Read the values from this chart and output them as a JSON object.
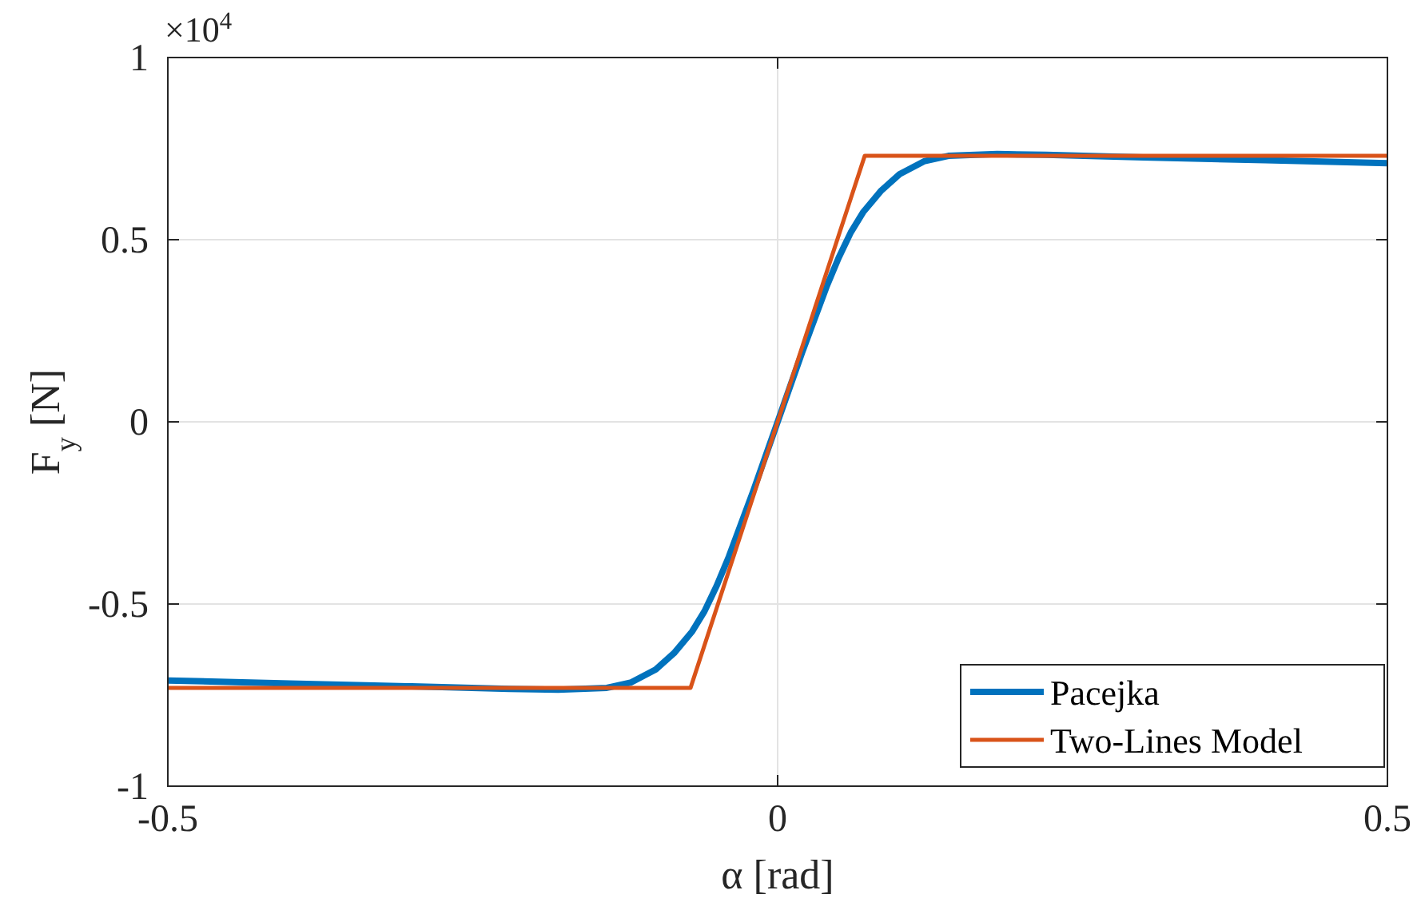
{
  "chart_data": {
    "type": "line",
    "xlabel": "α [rad]",
    "ylabel": "F$_{y}$ [N]",
    "annotations": [
      "×10$^{4}$"
    ],
    "xlim": [
      -0.5,
      0.5
    ],
    "xticks": [
      -0.5,
      0,
      0.5
    ],
    "ylim": [
      -1,
      1
    ],
    "yticks": [
      -1,
      -0.5,
      0,
      0.5,
      1
    ],
    "grid": true,
    "legend": "bottom right",
    "line_style": "solid",
    "marker": "none",
    "series": [
      {
        "name": "Pacejka",
        "color": "#0072bd",
        "x": [
          -0.5,
          -0.4,
          -0.3,
          -0.22,
          -0.18,
          -0.14,
          -0.12,
          -0.1,
          -0.085,
          -0.07,
          -0.06,
          -0.05,
          -0.04,
          -0.03,
          -0.02,
          -0.01,
          0,
          0.01,
          0.02,
          0.03,
          0.04,
          0.05,
          0.06,
          0.07,
          0.085,
          0.1,
          0.12,
          0.14,
          0.18,
          0.22,
          0.3,
          0.4,
          0.5
        ],
        "values": [
          -0.71,
          -0.718,
          -0.726,
          -0.733,
          -0.735,
          -0.73,
          -0.715,
          -0.68,
          -0.635,
          -0.575,
          -0.52,
          -0.45,
          -0.37,
          -0.28,
          -0.19,
          -0.095,
          0,
          0.095,
          0.19,
          0.28,
          0.37,
          0.45,
          0.52,
          0.575,
          0.635,
          0.68,
          0.715,
          0.73,
          0.735,
          0.733,
          0.726,
          0.718,
          0.71
        ]
      },
      {
        "name": "Two-Lines Model",
        "color": "#d95319",
        "x": [
          -0.5,
          -0.0714,
          0.0714,
          0.5
        ],
        "values": [
          -0.73,
          -0.73,
          0.73,
          0.73
        ]
      }
    ]
  }
}
